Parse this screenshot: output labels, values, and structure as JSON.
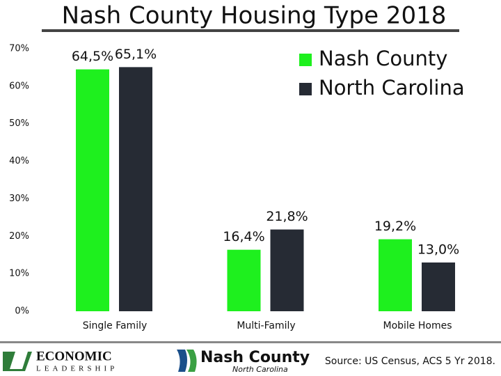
{
  "chart_data": {
    "type": "bar",
    "title": "Nash County Housing Type 2018",
    "categories": [
      "Single Family",
      "Multi-Family",
      "Mobile Homes"
    ],
    "series": [
      {
        "name": "Nash County",
        "color": "#1ef01e",
        "values": [
          64.5,
          16.4,
          19.2
        ],
        "value_labels": [
          "64,5%",
          "16,4%",
          "19,2%"
        ]
      },
      {
        "name": "North Carolina",
        "color": "#262b34",
        "values": [
          65.1,
          21.8,
          13.0
        ],
        "value_labels": [
          "65,1%",
          "21,8%",
          "13,0%"
        ]
      }
    ],
    "ylim": [
      0,
      70
    ],
    "yticks": [
      {
        "value": 0,
        "label": "0%"
      },
      {
        "value": 10,
        "label": "10%"
      },
      {
        "value": 20,
        "label": "20%"
      },
      {
        "value": 30,
        "label": "30%"
      },
      {
        "value": 40,
        "label": "40%"
      },
      {
        "value": 50,
        "label": "50%"
      },
      {
        "value": 60,
        "label": "60%"
      },
      {
        "value": 70,
        "label": "70%"
      }
    ],
    "grid": false,
    "legend": "top-right"
  },
  "footer": {
    "logo_left_top": "ECONOMIC",
    "logo_left_bottom": "LEADERSHIP",
    "logo_mid_top": "Nash County",
    "logo_mid_bottom": "North Carolina",
    "source": "Source: US Census, ACS 5 Yr 2018."
  }
}
